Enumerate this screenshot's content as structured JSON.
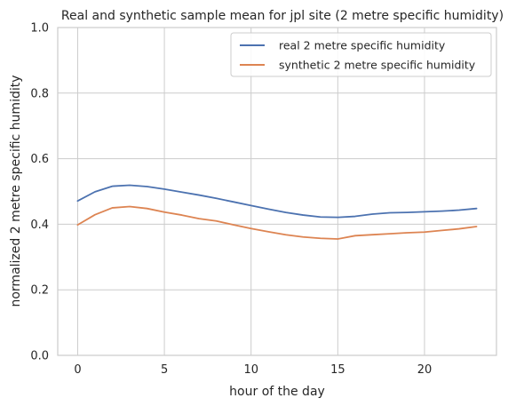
{
  "chart_data": {
    "type": "line",
    "title": "Real and synthetic sample mean for jpl site (2 metre specific humidity)",
    "xlabel": "hour of the day",
    "ylabel": "normalized 2 metre specific humidity",
    "xlim": [
      -1.15,
      24.15
    ],
    "ylim": [
      0,
      1
    ],
    "xticks": [
      0,
      5,
      10,
      15,
      20
    ],
    "yticks": [
      0.0,
      0.2,
      0.4,
      0.6,
      0.8,
      1.0
    ],
    "xtick_labels": [
      "0",
      "5",
      "10",
      "15",
      "20"
    ],
    "ytick_labels": [
      "0.0",
      "0.2",
      "0.4",
      "0.6",
      "0.8",
      "1.0"
    ],
    "grid": true,
    "legend_position": "top-right",
    "x": [
      0,
      1,
      2,
      3,
      4,
      5,
      6,
      7,
      8,
      9,
      10,
      11,
      12,
      13,
      14,
      15,
      16,
      17,
      18,
      19,
      20,
      21,
      22,
      23
    ],
    "series": [
      {
        "name": "real 2 metre specific humidity",
        "color": "#4c72b0",
        "values": [
          0.471,
          0.499,
          0.516,
          0.519,
          0.515,
          0.507,
          0.498,
          0.489,
          0.479,
          0.468,
          0.457,
          0.446,
          0.436,
          0.428,
          0.422,
          0.421,
          0.424,
          0.431,
          0.435,
          0.436,
          0.438,
          0.44,
          0.443,
          0.448
        ]
      },
      {
        "name": "synthetic 2 metre specific humidity",
        "color": "#dd8452",
        "values": [
          0.398,
          0.429,
          0.45,
          0.454,
          0.448,
          0.437,
          0.428,
          0.417,
          0.41,
          0.398,
          0.387,
          0.377,
          0.368,
          0.361,
          0.357,
          0.355,
          0.365,
          0.368,
          0.371,
          0.374,
          0.376,
          0.381,
          0.386,
          0.393
        ]
      }
    ]
  }
}
